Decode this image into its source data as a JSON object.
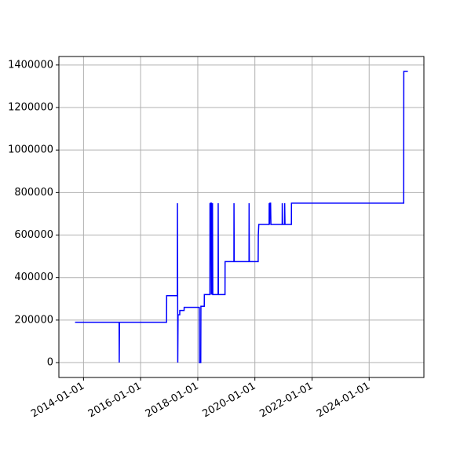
{
  "chart_data": {
    "type": "line",
    "x": [
      "2013-09-15",
      "2015-04-01",
      "2015-04-03",
      "2015-04-06",
      "2016-11-28",
      "2016-11-29",
      "2017-04-15",
      "2017-04-16",
      "2017-04-18",
      "2017-04-20",
      "2017-04-24",
      "2017-05-15",
      "2017-05-16",
      "2017-07-10",
      "2017-07-11",
      "2018-01-20",
      "2018-01-22",
      "2018-02-08",
      "2018-02-10",
      "2018-03-25",
      "2018-03-26",
      "2018-06-05",
      "2018-06-06",
      "2018-06-10",
      "2018-06-14",
      "2018-06-25",
      "2018-06-28",
      "2018-07-08",
      "2018-07-12",
      "2018-09-18",
      "2018-09-19",
      "2018-09-22",
      "2018-12-15",
      "2018-12-16",
      "2019-04-08",
      "2019-04-09",
      "2019-04-12",
      "2019-10-18",
      "2019-10-19",
      "2019-10-22",
      "2020-02-12",
      "2020-02-14",
      "2020-02-20",
      "2020-07-01",
      "2020-07-02",
      "2020-07-06",
      "2020-07-12",
      "2020-07-20",
      "2020-07-24",
      "2020-12-15",
      "2020-12-16",
      "2020-12-20",
      "2021-01-15",
      "2021-01-16",
      "2021-01-20",
      "2021-04-12",
      "2021-04-13",
      "2025-03-18",
      "2025-03-19",
      "2025-05-10"
    ],
    "series": [
      {
        "color": "#0000ff",
        "values": [
          190000,
          190000,
          0,
          190000,
          190000,
          315000,
          315000,
          750000,
          450000,
          0,
          225000,
          225000,
          245000,
          245000,
          260000,
          260000,
          0,
          0,
          265000,
          265000,
          320000,
          320000,
          750000,
          320000,
          750000,
          750000,
          320000,
          750000,
          320000,
          320000,
          750000,
          320000,
          320000,
          475000,
          475000,
          750000,
          475000,
          475000,
          750000,
          475000,
          475000,
          600000,
          650000,
          650000,
          750000,
          650000,
          750000,
          750000,
          650000,
          650000,
          750000,
          650000,
          650000,
          750000,
          650000,
          650000,
          750000,
          750000,
          1370000,
          1370000
        ]
      }
    ],
    "xlim": [
      "2013-02-20",
      "2025-12-01"
    ],
    "xticks": [
      "2014-01-01",
      "2016-01-01",
      "2018-01-01",
      "2020-01-01",
      "2022-01-01",
      "2024-01-01"
    ],
    "ylim": [
      -70000,
      1440000
    ],
    "yticks": [
      0,
      200000,
      400000,
      600000,
      800000,
      1000000,
      1200000,
      1400000
    ],
    "grid": true
  }
}
